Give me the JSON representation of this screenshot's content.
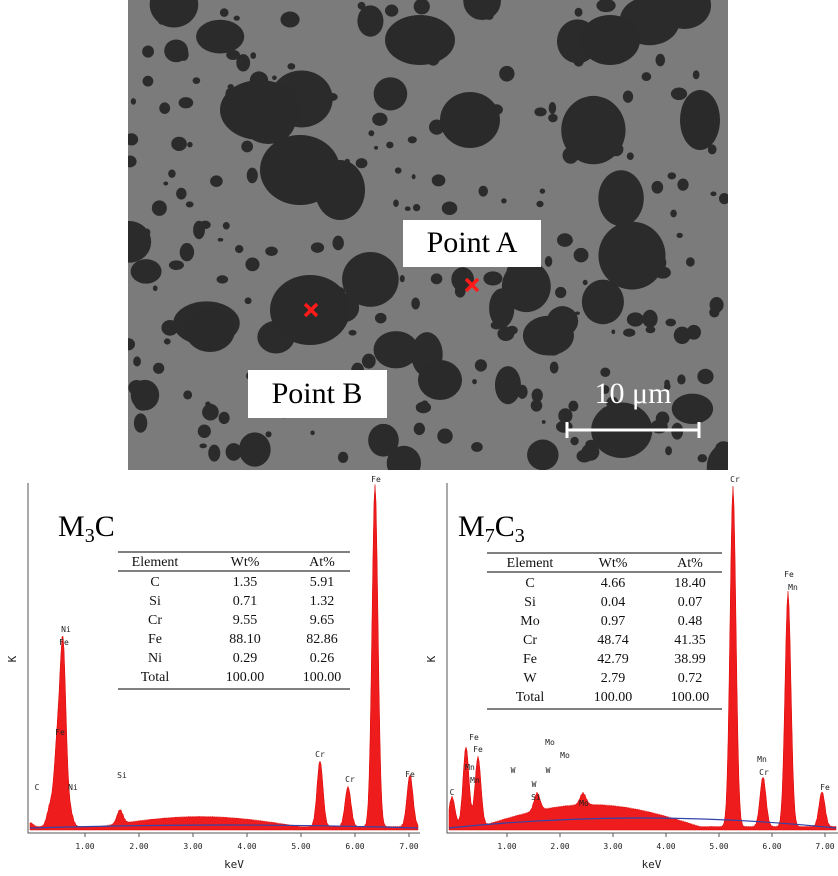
{
  "figure": {
    "sem_image": {
      "labels": [
        "Point A",
        "Point B"
      ],
      "scale_bar": "10 μm"
    },
    "spectra": [
      {
        "title_parts": [
          {
            "text": "M"
          },
          {
            "text": "3",
            "sub": true
          },
          {
            "text": "C"
          }
        ],
        "y_label": "K",
        "x_label": "keV",
        "xticks": [
          {
            "value": 1,
            "label": "1.00"
          },
          {
            "value": 2,
            "label": "2.00"
          },
          {
            "value": 3,
            "label": "3.00"
          },
          {
            "value": 4,
            "label": "4.00"
          },
          {
            "value": 5,
            "label": "5.00"
          },
          {
            "value": 6,
            "label": "6.00"
          },
          {
            "value": 7,
            "label": "7.00"
          }
        ],
        "peak_labels": [
          "Ni",
          "Fe",
          "Fe",
          "C",
          "Ni",
          "Si",
          "Cr",
          "Cr",
          "Fe",
          "Fe"
        ],
        "table": {
          "header": [
            "Element",
            "Wt%",
            "At%"
          ],
          "rows": [
            [
              "C",
              "1.35",
              "5.91"
            ],
            [
              "Si",
              "0.71",
              "1.32"
            ],
            [
              "Cr",
              "9.55",
              "9.65"
            ],
            [
              "Fe",
              "88.10",
              "82.86"
            ],
            [
              "Ni",
              "0.29",
              "0.26"
            ],
            [
              "Total",
              "100.00",
              "100.00"
            ]
          ]
        }
      },
      {
        "title_parts": [
          {
            "text": "M"
          },
          {
            "text": "7",
            "sub": true
          },
          {
            "text": "C"
          },
          {
            "text": "3",
            "sub": true
          }
        ],
        "y_label": "K",
        "x_label": "keV",
        "xticks": [
          {
            "value": 1,
            "label": "1.00"
          },
          {
            "value": 2,
            "label": "2.00"
          },
          {
            "value": 3,
            "label": "3.00"
          },
          {
            "value": 4,
            "label": "4.00"
          },
          {
            "value": 5,
            "label": "5.00"
          },
          {
            "value": 6,
            "label": "6.00"
          },
          {
            "value": 7,
            "label": "7.00"
          }
        ],
        "peak_labels": [
          "Fe",
          "Fe",
          "Mn",
          "Mn",
          "C",
          "W",
          "Mo",
          "Mo",
          "W",
          "W",
          "Si",
          "Mo",
          "Cr",
          "Fe",
          "Mn",
          "Mn",
          "Cr",
          "Fe"
        ],
        "table": {
          "header": [
            "Element",
            "Wt%",
            "At%"
          ],
          "rows": [
            [
              "C",
              "4.66",
              "18.40"
            ],
            [
              "Si",
              "0.04",
              "0.07"
            ],
            [
              "Mo",
              "0.97",
              "0.48"
            ],
            [
              "Cr",
              "48.74",
              "41.35"
            ],
            [
              "Fe",
              "42.79",
              "38.99"
            ],
            [
              "W",
              "2.79",
              "0.72"
            ],
            [
              "Total",
              "100.00",
              "100.00"
            ]
          ]
        }
      }
    ]
  }
}
